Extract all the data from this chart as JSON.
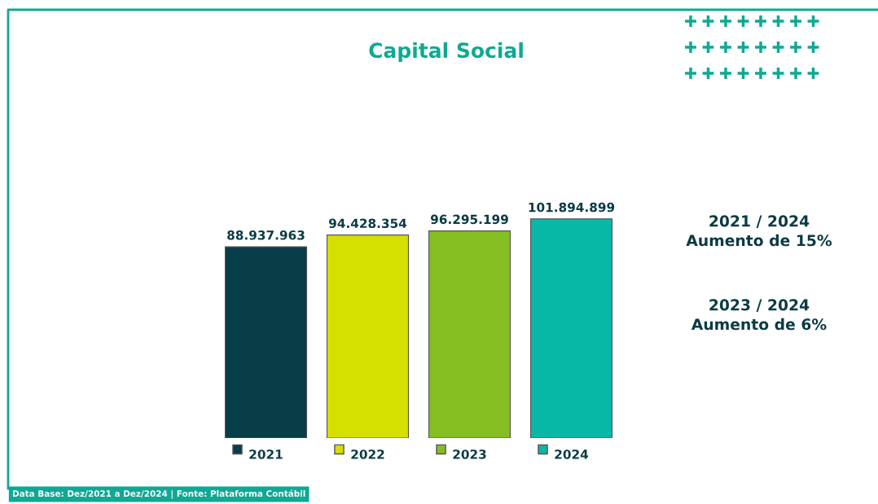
{
  "chart_data": {
    "type": "bar",
    "title": "Capital Social",
    "categories": [
      "2021",
      "2022",
      "2023",
      "2024"
    ],
    "values": [
      88937963,
      94428354,
      96295199,
      101894899
    ],
    "value_labels": [
      "88.937.963",
      "94.428.354",
      "96.295.199",
      "101.894.899"
    ],
    "colors": [
      "#073e48",
      "#d5df00",
      "#85be20",
      "#08b8a6"
    ],
    "tick_labels": "x",
    "annotations": [
      "2021 / 2024\nAumento de 15%",
      "2023 / 2024\nAumento de 6%",
      "Data Base: Dez/2021 a Dez/2024 | Fonte: Plataforma Contábil"
    ]
  }
}
